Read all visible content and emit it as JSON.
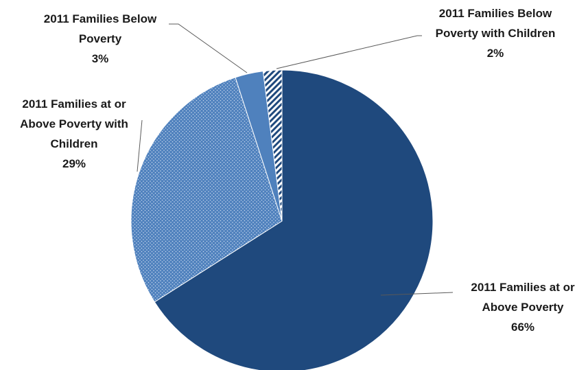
{
  "chart_data": {
    "type": "pie",
    "title": "",
    "slices": [
      {
        "name": "2011 Families at or Above Poverty",
        "lines": [
          "2011 Families at or",
          "Above Poverty"
        ],
        "value": 66,
        "label": "66%",
        "color": "#1f497d",
        "pattern": "solid"
      },
      {
        "name": "2011 Families at or Above Poverty with Children",
        "lines": [
          "2011 Families at or",
          "Above Poverty with",
          "Children"
        ],
        "value": 29,
        "label": "29%",
        "color": "#4f81bd",
        "pattern": "dots"
      },
      {
        "name": "2011 Families Below Poverty",
        "lines": [
          "2011 Families Below",
          "Poverty"
        ],
        "value": 3,
        "label": "3%",
        "color": "#4f81bd",
        "pattern": "solid"
      },
      {
        "name": "2011 Families Below Poverty with Children",
        "lines": [
          "2011 Families Below",
          "Poverty with Children"
        ],
        "value": 2,
        "label": "2%",
        "color": "#1f497d",
        "pattern": "hatch"
      }
    ],
    "legend": "none"
  }
}
